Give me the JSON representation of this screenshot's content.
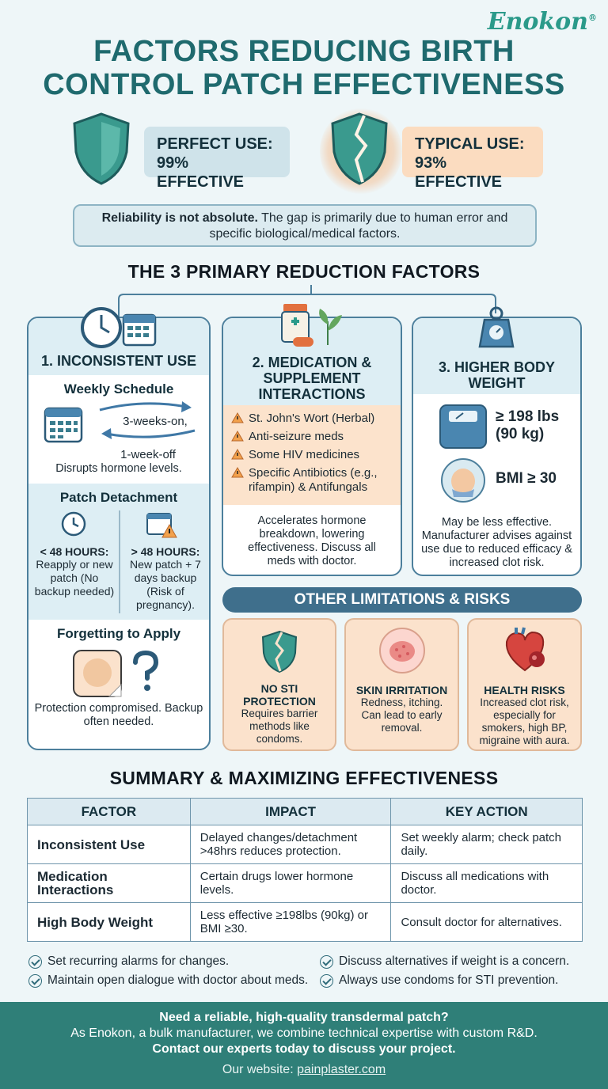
{
  "brand": {
    "name": "Enokon",
    "mark": "®"
  },
  "title": {
    "line1": "FACTORS REDUCING BIRTH",
    "line2": "CONTROL PATCH EFFECTIVENESS"
  },
  "perfect_use": {
    "label": "PERFECT USE:",
    "value": "99% EFFECTIVE"
  },
  "typical_use": {
    "label": "TYPICAL USE:",
    "value": "93% EFFECTIVE"
  },
  "reliability": {
    "bold": "Reliability is not absolute.",
    "text": " The gap is primarily due to human error and specific biological/medical factors."
  },
  "primary_title": "THE 3 PRIMARY REDUCTION FACTORS",
  "factor1": {
    "title": "1. INCONSISTENT USE",
    "weekly": {
      "title": "Weekly Schedule",
      "on": "3-weeks-on,",
      "off": "1-week-off",
      "note": "Disrupts hormone levels."
    },
    "detach": {
      "title": "Patch Detachment",
      "lt_label": "< 48 HOURS:",
      "lt_text": "Reapply or new patch (No backup needed)",
      "gt_label": "> 48 HOURS:",
      "gt_text": "New patch + 7 days backup (Risk of pregnancy)."
    },
    "forget": {
      "title": "Forgetting to Apply",
      "text": "Protection compromised. Backup often needed."
    }
  },
  "factor2": {
    "title": "2. MEDICATION & SUPPLEMENT INTERACTIONS",
    "items": [
      "St. John's Wort (Herbal)",
      "Anti-seizure meds",
      "Some HIV medicines",
      "Specific Antibiotics (e.g., rifampin) & Antifungals"
    ],
    "note": "Accelerates hormone breakdown, lowering effectiveness. Discuss all meds with doctor."
  },
  "factor3": {
    "title": "3. HIGHER BODY WEIGHT",
    "weight": "≥ 198 lbs (90 kg)",
    "bmi": "BMI ≥ 30",
    "note": "May be less effective. Manufacturer advises against use due to reduced efficacy & increased clot risk."
  },
  "other_title": "OTHER LIMITATIONS & RISKS",
  "limits": [
    {
      "title": "NO STI PROTECTION",
      "text": "Requires barrier methods like condoms."
    },
    {
      "title": "SKIN IRRITATION",
      "text": "Redness, itching. Can lead to early removal."
    },
    {
      "title": "HEALTH RISKS",
      "text": "Increased clot risk, especially for smokers, high BP, migraine with aura."
    }
  ],
  "summary_title": "SUMMARY & MAXIMIZING EFFECTIVENESS",
  "table": {
    "headers": [
      "FACTOR",
      "IMPACT",
      "KEY ACTION"
    ],
    "rows": [
      [
        "Inconsistent Use",
        "Delayed changes/detachment >48hrs reduces protection.",
        "Set weekly alarm; check patch daily."
      ],
      [
        "Medication Interactions",
        "Certain drugs lower hormone levels.",
        "Discuss all medications with doctor."
      ],
      [
        "High Body Weight",
        "Less effective ≥198lbs (90kg) or BMI ≥30.",
        "Consult doctor for alternatives."
      ]
    ]
  },
  "tips": [
    "Set recurring alarms for changes.",
    "Discuss alternatives if weight is a concern.",
    "Maintain open dialogue with doctor about meds.",
    "Always use condoms for STI prevention."
  ],
  "footer": {
    "line1": "Need a reliable, high-quality transdermal patch?",
    "line2": "As Enokon, a bulk manufacturer, we combine technical expertise with custom R&D.",
    "line3": "Contact our experts today to discuss your project.",
    "website_label": "Our website: ",
    "website": "painplaster.com"
  },
  "colors": {
    "teal": "#2b9a8a",
    "navy": "#4c7f9c",
    "peach": "#fce3cc",
    "footer": "#2f7f78"
  }
}
